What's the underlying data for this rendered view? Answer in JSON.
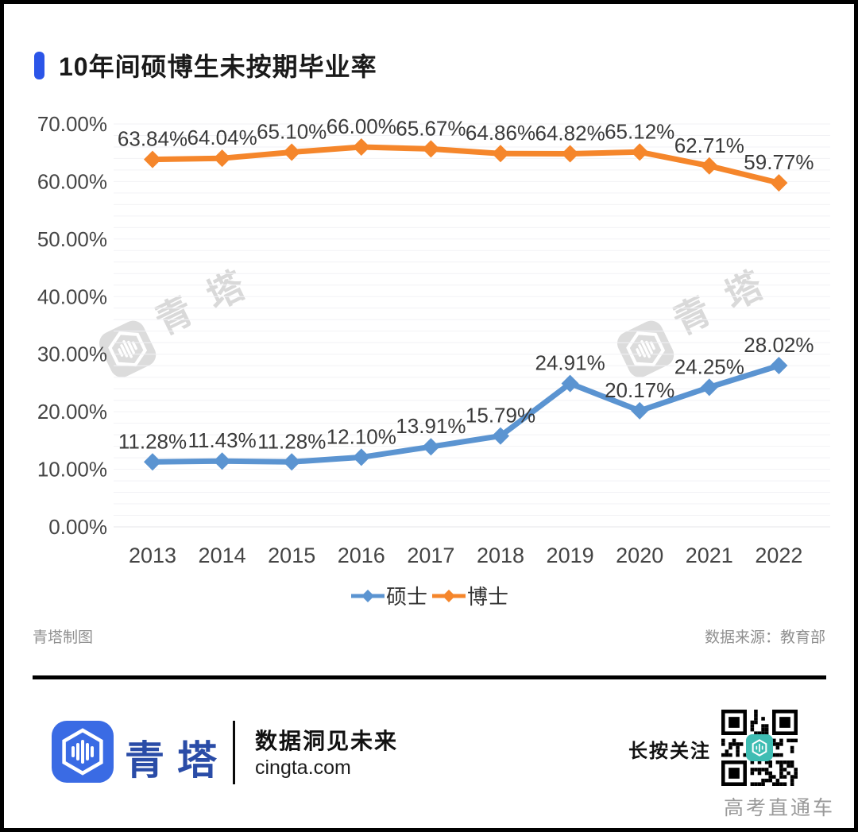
{
  "page": {
    "title": "10年间硕博生未按期毕业率",
    "credit_left": "青塔制图",
    "credit_right": "数据来源：教育部",
    "watermark_text": "青塔"
  },
  "chart_data": {
    "type": "line",
    "title": "10年间硕博生未按期毕业率",
    "categories": [
      "2013",
      "2014",
      "2015",
      "2016",
      "2017",
      "2018",
      "2019",
      "2020",
      "2021",
      "2022"
    ],
    "series": [
      {
        "name": "硕士",
        "color": "#5B94D1",
        "values": [
          11.28,
          11.43,
          11.28,
          12.1,
          13.91,
          15.79,
          24.91,
          20.17,
          24.25,
          28.02
        ],
        "labels": [
          "11.28%",
          "11.43%",
          "11.28%",
          "12.10%",
          "13.91%",
          "15.79%",
          "24.91%",
          "20.17%",
          "24.25%",
          "28.02%"
        ]
      },
      {
        "name": "博士",
        "color": "#F5862B",
        "values": [
          63.84,
          64.04,
          65.1,
          66.0,
          65.67,
          64.86,
          64.82,
          65.12,
          62.71,
          59.77
        ],
        "labels": [
          "63.84%",
          "64.04%",
          "65.10%",
          "66.00%",
          "65.67%",
          "64.86%",
          "64.82%",
          "65.12%",
          "62.71%",
          "59.77%"
        ]
      }
    ],
    "xlabel": "",
    "ylabel": "",
    "ylim": [
      0,
      70
    ],
    "y_tick_labels": [
      "0.00%",
      "10.00%",
      "20.00%",
      "30.00%",
      "40.00%",
      "50.00%",
      "60.00%",
      "70.00%"
    ],
    "grid": true,
    "marker": "diamond",
    "legend_position": "bottom"
  },
  "footer": {
    "brand_name": "青塔",
    "tagline": "数据洞见未来",
    "website": "cingta.com",
    "follow_label": "长按关注",
    "channel_label": "高考直通车"
  },
  "colors": {
    "accent": "#2B55E8",
    "brand_blue": "#2A4CA7",
    "logo_blue": "#3A6BE4",
    "qr_badge": "#3FBDB3",
    "grid_line": "#f2f2f5",
    "axis_text": "#454545",
    "data_label": "#3a3a3a"
  }
}
